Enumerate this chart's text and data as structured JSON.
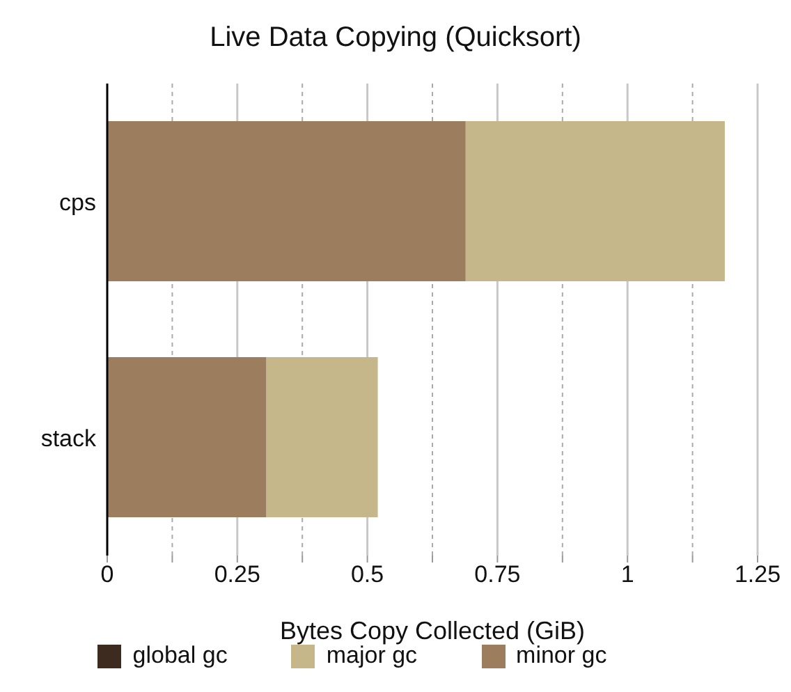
{
  "chart_data": {
    "type": "bar",
    "orientation": "horizontal",
    "stacked": true,
    "title": "Live Data Copying (Quicksort)",
    "xlabel": "Bytes Copy Collected (GiB)",
    "categories": [
      "cps",
      "stack"
    ],
    "series": [
      {
        "name": "minor gc",
        "color": "#9c7e5f",
        "values": [
          0.689,
          0.306
        ]
      },
      {
        "name": "major gc",
        "color": "#c5b78a",
        "values": [
          0.498,
          0.214
        ]
      },
      {
        "name": "global gc",
        "color": "#3d2b1f",
        "values": [
          0,
          0
        ]
      }
    ],
    "xlim": [
      0,
      1.25
    ],
    "xticks": [
      0,
      {
        "value": 0.125,
        "label": null
      },
      0.25,
      {
        "value": 0.375,
        "label": null
      },
      0.5,
      {
        "value": 0.625,
        "label": null
      },
      0.75,
      {
        "value": 0.875,
        "label": null
      },
      1,
      {
        "value": 1.125,
        "label": null
      },
      1.25
    ],
    "grid": true,
    "legend": "bottom"
  }
}
